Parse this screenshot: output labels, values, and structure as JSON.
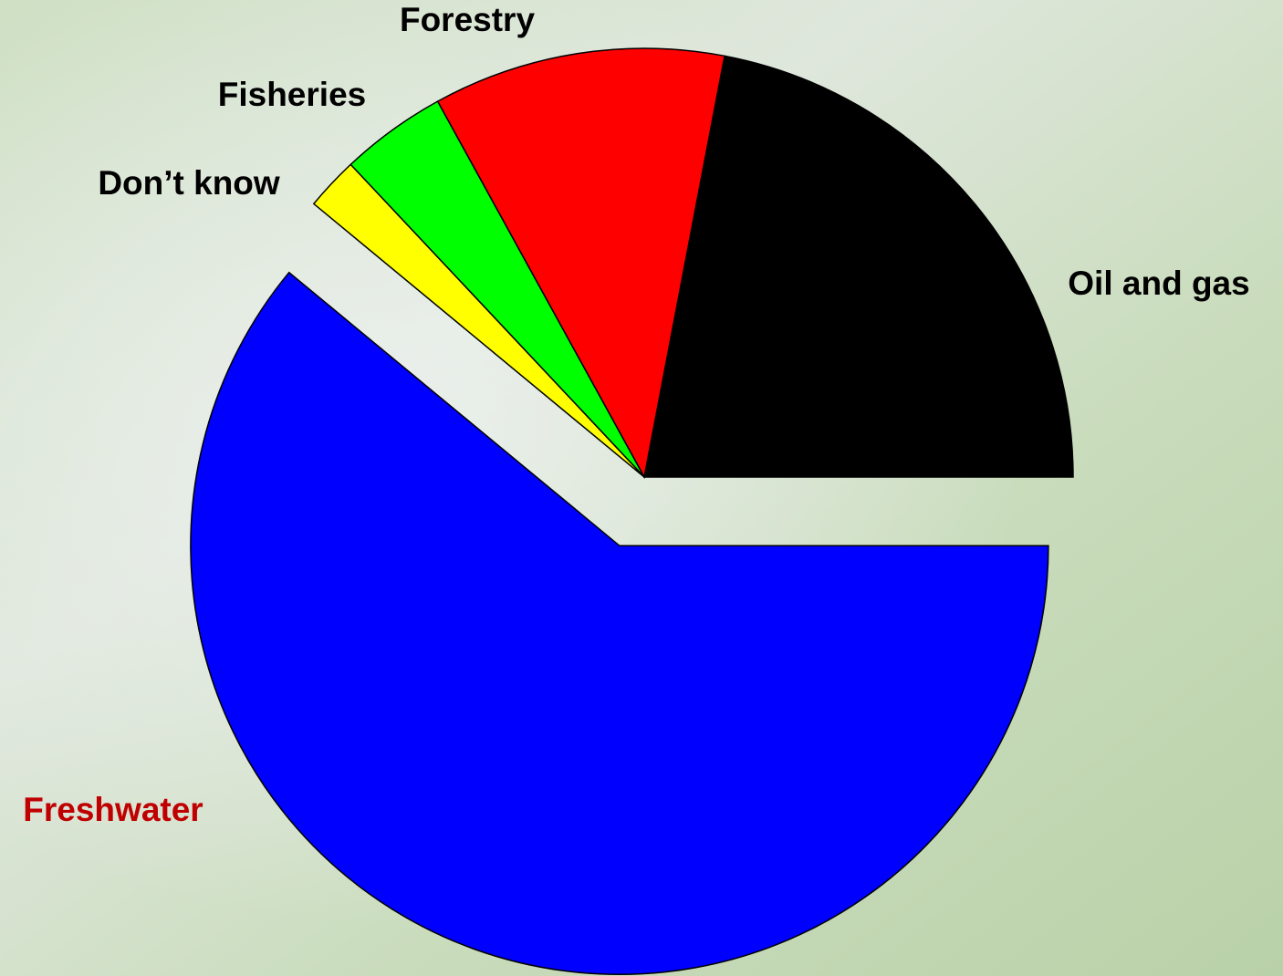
{
  "chart_data": {
    "type": "pie",
    "categories": [
      "Oil and gas",
      "Forestry",
      "Fisheries",
      "Don’t know",
      "Freshwater"
    ],
    "values": [
      22,
      11,
      4,
      2,
      61
    ],
    "colors": [
      "#000000",
      "#ff0000",
      "#00ff00",
      "#ffff00",
      "#0000ff"
    ],
    "label_colors": [
      "#000000",
      "#000000",
      "#000000",
      "#000000",
      "#c00000"
    ]
  }
}
